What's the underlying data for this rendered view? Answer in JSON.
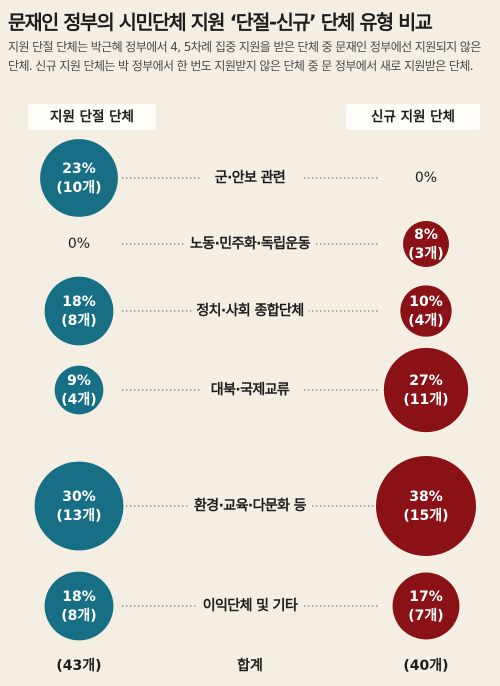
{
  "title": "문재인 정부의 시민단체 지원 ‘단절-신규’ 단체 유형 비교",
  "description": "지원 단절 단체는 박근혜 정부에서 4, 5차례 집중 지원을 받은 단체 중 문재인 정부에선 지원되지 않은 단체. 신규 지원 단체는 박 정부에서 한 번도 지원받지 않은 단체 중 문 정부에서 새로 지원받은 단체.",
  "colors": {
    "left_series": "#176f86",
    "right_series": "#8a1115",
    "background": "#f4efe2"
  },
  "chart_data": {
    "type": "bubble",
    "title": "문재인 정부의 시민단체 지원 ‘단절-신규’ 단체 유형 비교",
    "categories": [
      "군·안보 관련",
      "노동·민주화·독립운동",
      "정치·사회 종합단체",
      "대북·국제교류",
      "환경·교육·다문화 등",
      "이익단체 및 기타"
    ],
    "series": [
      {
        "name": "지원 단절 단체",
        "percent": [
          23,
          0,
          18,
          9,
          30,
          18
        ],
        "labels": [
          "23%",
          "0%",
          "18%",
          "9%",
          "30%",
          "18%"
        ],
        "counts": [
          "(10개)",
          "",
          "(8개)",
          "(4개)",
          "(13개)",
          "(8개)"
        ],
        "total": "(43개)"
      },
      {
        "name": "신규 지원 단체",
        "percent": [
          0,
          8,
          10,
          27,
          38,
          17
        ],
        "labels": [
          "0%",
          "8%",
          "10%",
          "27%",
          "38%",
          "17%"
        ],
        "counts": [
          "",
          "(3개)",
          "(4개)",
          "(11개)",
          "(15개)",
          "(7개)"
        ],
        "total": "(40개)"
      }
    ],
    "total_label": "합계"
  }
}
